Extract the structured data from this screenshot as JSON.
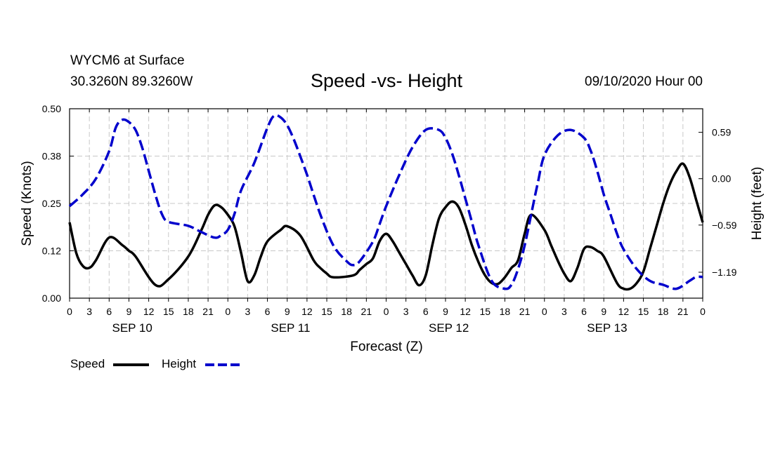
{
  "header": {
    "station": "WYCM6 at Surface",
    "coords": "30.3260N 89.3260W",
    "title": "Speed -vs- Height",
    "datetime": "09/10/2020 Hour 00"
  },
  "legend": {
    "speed_label": "Speed",
    "height_label": "Height"
  },
  "colors": {
    "speed": "#000000",
    "height": "#0000cc",
    "grid": "#c8c8c8"
  },
  "chart_data": {
    "type": "line",
    "title": "Speed -vs- Height",
    "xlabel": "Forecast (Z)",
    "ylabel_left": "Speed (Knots)",
    "ylabel_right": "Height (feet)",
    "x_range_hours": [
      0,
      96
    ],
    "y_left_range": [
      0,
      0.5
    ],
    "y_right_range": [
      -1.52,
      0.89
    ],
    "y_left_ticks": [
      "0.00",
      "0.12",
      "0.25",
      "0.38",
      "0.50"
    ],
    "y_right_ticks": [
      {
        "value": 0.59,
        "label": "0.59"
      },
      {
        "value": 0.0,
        "label": "0.00"
      },
      {
        "value": -0.59,
        "label": "−0.59"
      },
      {
        "value": -1.19,
        "label": "−1.19"
      }
    ],
    "x_tick_labels": [
      "0",
      "3",
      "6",
      "9",
      "12",
      "15",
      "18",
      "21",
      "0",
      "3",
      "6",
      "9",
      "12",
      "15",
      "18",
      "21",
      "0",
      "3",
      "6",
      "9",
      "12",
      "15",
      "18",
      "21",
      "0",
      "3",
      "6",
      "9",
      "12",
      "15",
      "18",
      "21",
      "0"
    ],
    "day_labels": [
      {
        "label": "SEP 10",
        "hour": 9.5
      },
      {
        "label": "SEP 11",
        "hour": 33.5
      },
      {
        "label": "SEP 12",
        "hour": 57.5
      },
      {
        "label": "SEP 13",
        "hour": 81.5
      }
    ],
    "grid": true,
    "series": [
      {
        "name": "Speed",
        "axis": "left",
        "style": "solid",
        "hours": [
          0,
          1,
          2,
          3,
          4,
          6,
          8,
          9,
          10,
          13,
          15,
          18,
          20,
          21,
          22,
          23,
          24,
          25,
          26,
          27,
          28,
          29,
          30,
          32,
          33,
          35,
          37,
          38,
          39,
          40,
          43,
          44,
          45,
          46,
          47,
          48,
          49,
          50,
          51,
          52,
          53,
          54,
          55,
          56,
          57,
          58,
          59,
          60,
          61,
          62,
          63,
          64,
          65,
          66,
          67,
          68,
          69,
          70,
          72,
          73,
          74,
          75,
          76,
          77,
          78,
          79,
          80,
          81,
          83,
          84,
          85,
          86,
          87,
          88,
          89,
          90,
          91,
          92,
          93,
          94,
          95,
          96
        ],
        "values": [
          0.2,
          0.12,
          0.085,
          0.08,
          0.1,
          0.16,
          0.14,
          0.125,
          0.11,
          0.035,
          0.05,
          0.11,
          0.18,
          0.22,
          0.245,
          0.24,
          0.22,
          0.19,
          0.12,
          0.045,
          0.06,
          0.11,
          0.15,
          0.18,
          0.19,
          0.165,
          0.1,
          0.08,
          0.065,
          0.055,
          0.06,
          0.075,
          0.09,
          0.105,
          0.15,
          0.17,
          0.15,
          0.12,
          0.09,
          0.06,
          0.034,
          0.06,
          0.14,
          0.21,
          0.24,
          0.255,
          0.24,
          0.195,
          0.14,
          0.095,
          0.06,
          0.04,
          0.038,
          0.055,
          0.08,
          0.1,
          0.17,
          0.22,
          0.18,
          0.14,
          0.1,
          0.065,
          0.045,
          0.08,
          0.13,
          0.135,
          0.125,
          0.11,
          0.04,
          0.025,
          0.025,
          0.04,
          0.07,
          0.13,
          0.19,
          0.25,
          0.3,
          0.335,
          0.355,
          0.32,
          0.26,
          0.2
        ]
      },
      {
        "name": "Height",
        "axis": "right",
        "style": "dashed",
        "hours": [
          0,
          2,
          4,
          6,
          7,
          8,
          9,
          10,
          11,
          12,
          13,
          14,
          15,
          18,
          20,
          22,
          23,
          24,
          25,
          26,
          28,
          30,
          31,
          32,
          33,
          34,
          35,
          36,
          38,
          40,
          42,
          43,
          44,
          46,
          47,
          48,
          50,
          52,
          54,
          56,
          57,
          58,
          59,
          60,
          61,
          62,
          64,
          66,
          67,
          68,
          69,
          70,
          71,
          72,
          74,
          76,
          78,
          79,
          80,
          81,
          82,
          83,
          84,
          86,
          88,
          90,
          92,
          94,
          95,
          96
        ],
        "values": [
          -0.35,
          -0.2,
          0.0,
          0.35,
          0.65,
          0.75,
          0.72,
          0.62,
          0.4,
          0.1,
          -0.2,
          -0.45,
          -0.55,
          -0.6,
          -0.68,
          -0.75,
          -0.72,
          -0.65,
          -0.45,
          -0.15,
          0.2,
          0.65,
          0.8,
          0.78,
          0.68,
          0.5,
          0.28,
          0.05,
          -0.45,
          -0.85,
          -1.05,
          -1.1,
          -1.05,
          -0.8,
          -0.58,
          -0.35,
          0.05,
          0.4,
          0.62,
          0.62,
          0.52,
          0.32,
          0.05,
          -0.25,
          -0.55,
          -0.85,
          -1.3,
          -1.4,
          -1.35,
          -1.15,
          -0.85,
          -0.45,
          -0.05,
          0.3,
          0.55,
          0.62,
          0.52,
          0.36,
          0.1,
          -0.2,
          -0.45,
          -0.7,
          -0.9,
          -1.15,
          -1.3,
          -1.35,
          -1.4,
          -1.3,
          -1.25,
          -1.25
        ]
      }
    ]
  }
}
